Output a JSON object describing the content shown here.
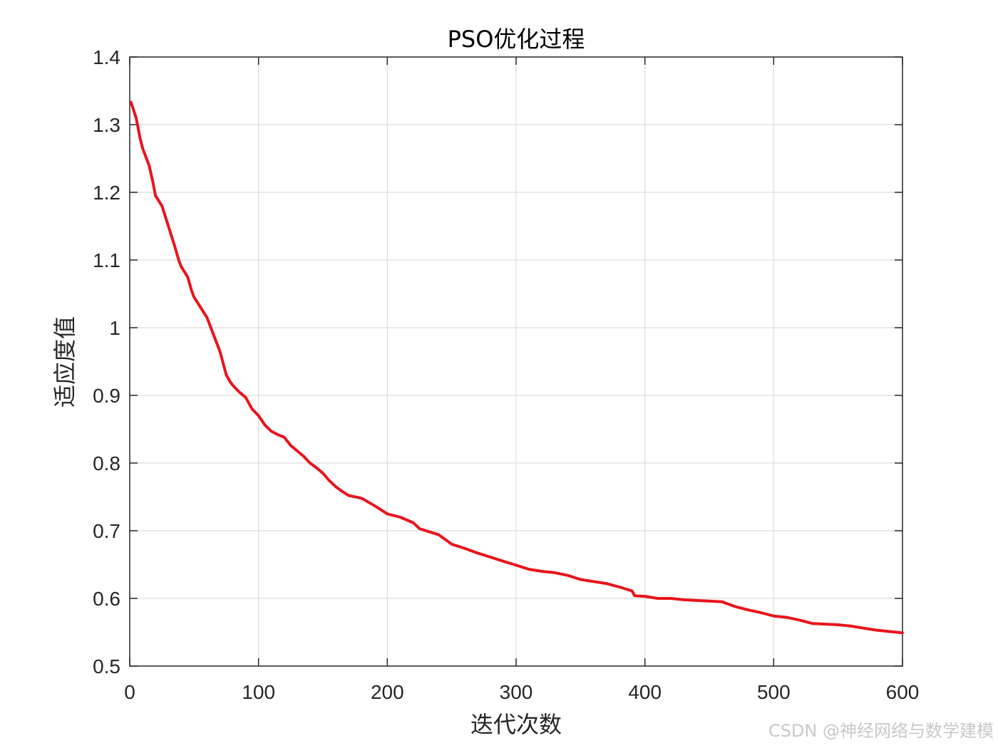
{
  "watermark": "CSDN @神经网络与数学建模",
  "colors": {
    "line": "#e8141c",
    "grid": "#dcdcdc",
    "axes": "#262626",
    "background": "#ffffff"
  },
  "chart_data": {
    "type": "line",
    "title": "PSO优化过程",
    "xlabel": "迭代次数",
    "ylabel": "适应度值",
    "xlim": [
      0,
      600
    ],
    "ylim": [
      0.5,
      1.4
    ],
    "xticks": [
      0,
      100,
      200,
      300,
      400,
      500,
      600
    ],
    "yticks": [
      0.5,
      0.6,
      0.7,
      0.8,
      0.9,
      1.0,
      1.1,
      1.2,
      1.3,
      1.4
    ],
    "xtick_labels": [
      "0",
      "100",
      "200",
      "300",
      "400",
      "500",
      "600"
    ],
    "ytick_labels": [
      "0.5",
      "0.6",
      "0.7",
      "0.8",
      "0.9",
      "1",
      "1.1",
      "1.2",
      "1.3",
      "1.4"
    ],
    "grid": true,
    "legend": false,
    "series": [
      {
        "color": "#e8141c",
        "x": [
          1,
          5,
          8,
          10,
          15,
          18,
          20,
          25,
          30,
          35,
          38,
          40,
          45,
          48,
          50,
          55,
          60,
          65,
          70,
          75,
          78,
          80,
          85,
          90,
          95,
          100,
          105,
          110,
          115,
          120,
          125,
          130,
          135,
          140,
          145,
          150,
          155,
          160,
          165,
          170,
          180,
          190,
          200,
          210,
          220,
          225,
          230,
          240,
          250,
          260,
          270,
          280,
          290,
          300,
          310,
          320,
          330,
          340,
          350,
          360,
          370,
          380,
          390,
          392,
          400,
          410,
          420,
          430,
          440,
          450,
          460,
          470,
          480,
          490,
          500,
          510,
          520,
          530,
          540,
          550,
          560,
          570,
          580,
          590,
          600
        ],
        "y": [
          1.333,
          1.31,
          1.28,
          1.265,
          1.24,
          1.215,
          1.195,
          1.18,
          1.15,
          1.12,
          1.1,
          1.09,
          1.075,
          1.055,
          1.045,
          1.03,
          1.015,
          0.99,
          0.965,
          0.93,
          0.92,
          0.915,
          0.905,
          0.897,
          0.88,
          0.87,
          0.856,
          0.847,
          0.842,
          0.838,
          0.826,
          0.818,
          0.81,
          0.8,
          0.793,
          0.785,
          0.774,
          0.765,
          0.758,
          0.752,
          0.748,
          0.737,
          0.725,
          0.72,
          0.712,
          0.703,
          0.7,
          0.694,
          0.68,
          0.674,
          0.667,
          0.661,
          0.655,
          0.649,
          0.643,
          0.64,
          0.638,
          0.634,
          0.628,
          0.625,
          0.622,
          0.617,
          0.611,
          0.604,
          0.603,
          0.6,
          0.6,
          0.598,
          0.597,
          0.596,
          0.595,
          0.588,
          0.583,
          0.579,
          0.574,
          0.572,
          0.568,
          0.563,
          0.562,
          0.561,
          0.559,
          0.556,
          0.553,
          0.551,
          0.549
        ]
      }
    ]
  }
}
